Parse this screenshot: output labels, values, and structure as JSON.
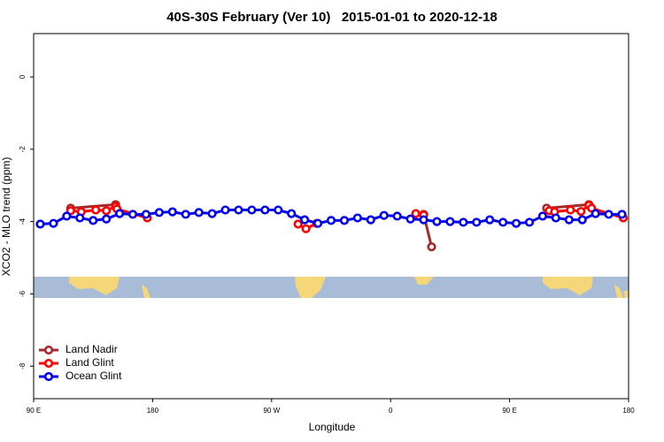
{
  "chart_data": {
    "type": "line",
    "title": "40S-30S February (Ver 10)   2015-01-01 to 2020-12-18",
    "xlabel": "Longitude",
    "ylabel": "XCO2 - MLO trend (ppm)",
    "xlim": [
      90,
      540
    ],
    "xticks": [
      {
        "value": 90,
        "label": "90 E"
      },
      {
        "value": 180,
        "label": "180"
      },
      {
        "value": 270,
        "label": "90 W"
      },
      {
        "value": 360,
        "label": "0"
      },
      {
        "value": 450,
        "label": "90 E"
      },
      {
        "value": 540,
        "label": "180"
      }
    ],
    "ylim": [
      -8.9,
      1.2
    ],
    "yticks": [
      0,
      -2,
      -4,
      -6,
      -8
    ],
    "legend": "bottomleft",
    "series": [
      {
        "name": "Land Nadir",
        "color": "#a52a2a",
        "x": [
          118,
          152,
          null,
          385,
          391,
          null,
          478,
          510
        ],
        "values": [
          -3.63,
          -3.53,
          null,
          -3.8,
          -4.7,
          null,
          -3.63,
          -3.53
        ]
      },
      {
        "name": "Land Glint",
        "color": "#ff0000",
        "x": [
          118,
          126,
          137,
          145,
          152,
          153,
          176,
          null,
          290,
          296,
          304,
          null,
          379,
          385,
          null,
          480,
          484,
          496,
          504,
          510,
          512,
          536
        ],
        "values": [
          -3.7,
          -3.73,
          -3.68,
          -3.7,
          -3.58,
          -3.65,
          -3.9,
          null,
          -4.07,
          -4.2,
          -4.05,
          null,
          -3.78,
          -3.82,
          null,
          -3.7,
          -3.73,
          -3.68,
          -3.72,
          -3.55,
          -3.63,
          -3.9
        ]
      },
      {
        "name": "Ocean Glint",
        "color": "#0000ee",
        "x": [
          95,
          105,
          115,
          125,
          135,
          145,
          155,
          165,
          175,
          185,
          195,
          205,
          215,
          225,
          235,
          245,
          255,
          265,
          275,
          285,
          295,
          305,
          315,
          325,
          335,
          345,
          355,
          365,
          375,
          385,
          395,
          405,
          415,
          425,
          435,
          445,
          455,
          465,
          475,
          485,
          495,
          505,
          515,
          525,
          535
        ],
        "values": [
          -4.07,
          -4.05,
          -3.85,
          -3.9,
          -3.97,
          -3.93,
          -3.78,
          -3.8,
          -3.8,
          -3.75,
          -3.73,
          -3.8,
          -3.75,
          -3.78,
          -3.68,
          -3.68,
          -3.68,
          -3.68,
          -3.68,
          -3.78,
          -3.95,
          -4.05,
          -3.97,
          -3.97,
          -3.9,
          -3.95,
          -3.83,
          -3.85,
          -3.93,
          -3.95,
          -4.0,
          -4.0,
          -4.02,
          -4.02,
          -3.95,
          -4.02,
          -4.05,
          -4.02,
          -3.85,
          -3.9,
          -3.95,
          -3.95,
          -3.78,
          -3.8,
          -3.8
        ]
      }
    ]
  }
}
